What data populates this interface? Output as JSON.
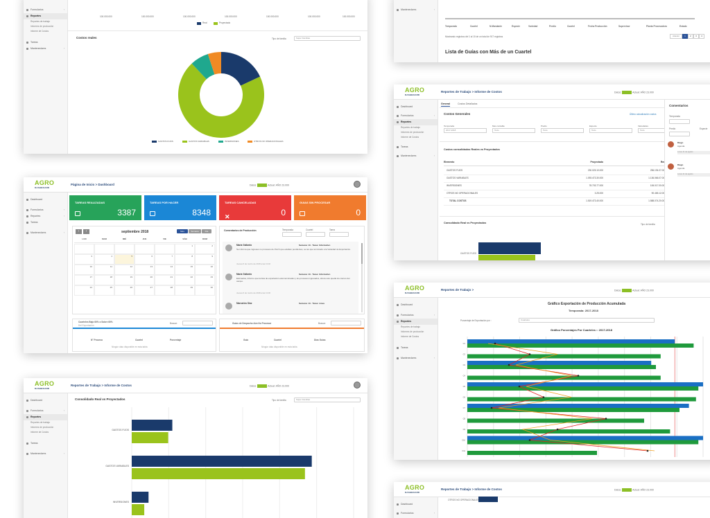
{
  "brand": {
    "l1": "AGRO",
    "l2": "DASHBOARD"
  },
  "status_label": "Datos:",
  "status_period_label": "Actual:",
  "status_update": "AÑO 23.000",
  "sidebar": {
    "dashboard": "Dashboard",
    "formularios": "Formularios",
    "reportes": "Reportes",
    "reportes_trabajo": "Reportes de trabajo",
    "informe_produccion": "Informes de producción",
    "informe_costos": "Informe de Costos",
    "tareas": "Tareas",
    "mantenedores": "Mantenedores"
  },
  "costs_card": {
    "legend_top": [
      "Real",
      "Proyectado"
    ],
    "title": "Costos reales",
    "filter_label": "Tipo de familia",
    "filter_value": "Super Familias",
    "axis_ticks": [
      "100.000.000",
      "100.000.000",
      "100.000.000",
      "100.000.000",
      "100.000.000",
      "100.000.000",
      "100.000.000"
    ],
    "legend": [
      {
        "name": "GASTOS FIJOS",
        "color": "#1a3a6b"
      },
      {
        "name": "GASTOS VARIABLES",
        "color": "#9ac31c"
      },
      {
        "name": "INVERSIONES",
        "color": "#1fa88e"
      },
      {
        "name": "OTROS NO OPERACIONALES",
        "color": "#f08a24"
      }
    ],
    "chart_data": {
      "type": "pie",
      "title": "Costos reales",
      "categories": [
        "GASTOS FIJOS",
        "GASTOS VARIABLES",
        "INVERSIONES",
        "OTROS NO OPERACIONALES"
      ],
      "values": [
        18,
        70,
        7,
        5
      ]
    }
  },
  "guides_card": {
    "cols": [
      "Temporada",
      "Cuartel",
      "N.Mandante",
      "Especie",
      "Variedad",
      "Predio",
      "Cuartel",
      "Fecha Producción",
      "Supervisor",
      "Planta Procesadora",
      "Estado"
    ],
    "footer": "Mostrando registros del 1 al 10 de un total de 917 registros",
    "pager": [
      "Anterior",
      "1",
      "2",
      "3",
      "4"
    ],
    "title": "Lista de Guías con Más de un Cuartel"
  },
  "dashboard_card": {
    "breadcrumb": "Página de Inicio > Dashboard",
    "kpis": [
      {
        "label": "TAREAS REALIZADAS",
        "value": "3387",
        "color": "#27a35a"
      },
      {
        "label": "TAREAS POR HACER",
        "value": "8348",
        "color": "#1b87d6"
      },
      {
        "label": "TAREAS CANCELADAS",
        "value": "0",
        "color": "#e83a3a"
      },
      {
        "label": "GUIAS SIN PROCESAR",
        "value": "0",
        "color": "#f07b2e"
      }
    ],
    "calendar": {
      "month": "septiembre 2018",
      "views": [
        "Mes",
        "Semana",
        "Día"
      ],
      "weekdays": [
        "LUN",
        "MAR",
        "MIÉ",
        "JUE",
        "VIE",
        "SÁB",
        "DOM"
      ],
      "days": [
        "",
        "",
        "",
        "",
        "",
        "1",
        "2",
        "3",
        "4",
        "5",
        "6",
        "7",
        "8",
        "9",
        "10",
        "11",
        "12",
        "13",
        "14",
        "15",
        "16",
        "17",
        "18",
        "19",
        "20",
        "21",
        "22",
        "23",
        "24",
        "25",
        "26",
        "27",
        "28",
        "29",
        "30"
      ]
    },
    "comments": {
      "title": "Comentarios de Producción",
      "filters": [
        "Temporada",
        "Cuartel",
        "Tarea"
      ],
      "items": [
        {
          "name": "María Gallardo",
          "task": "Semana: 13 · Tarea: Informativo",
          "text": "Se informa que ingreses no procesos de Porch que estaban pendientes, se les que terminado a la Variedad de Exportación.",
          "date": "Jueves 6 de marzo de 2018 a las 13:32"
        },
        {
          "name": "María Gallardo",
          "task": "Semana: 13 · Tarea: Informativo",
          "text": "Estimados, Informo que la lista de exportación está terminados y los procesos ingresados, ahora solo queda los cierres del campo.",
          "date": "Jueves 6 de marzo de 2018 a las 13:30"
        },
        {
          "name": "Marcarios Díaz",
          "task": "Semana: 13 · Tarea: Línea",
          "text": "",
          "date": ""
        }
      ]
    },
    "list_left": {
      "title": "Cuarteles Bajo 60% o Sobre 60%",
      "subtitle": "Del Exportación",
      "search": "Buscar:",
      "cols": [
        "N° Proceso",
        "Cuartel",
        "Porcentaje"
      ],
      "empty": "Ningún dato disponible en esta tabla"
    },
    "list_right": {
      "title": "Guías de Despacho Aún No Procesar",
      "search": "Buscar:",
      "cols": [
        "Guía",
        "Cuartel",
        "Días Guías"
      ],
      "empty": "Ningún dato disponible en esta tabla"
    }
  },
  "general_costs_card": {
    "breadcrumb": "Reportes de Trabajo > Informe de Costos",
    "tabs": [
      "General",
      "Costos Detallados"
    ],
    "title": "Costos Generales",
    "link": "Último actualización costos",
    "filters": [
      {
        "label": "Temporada",
        "value": "2017-2018"
      },
      {
        "label": "Mes contable",
        "value": "Todo"
      },
      {
        "label": "Predio",
        "value": "Todo"
      },
      {
        "label": "Especie",
        "value": "Todo"
      },
      {
        "label": "Variedades",
        "value": "Todo"
      }
    ],
    "table_title": "Costos consolidados Reales vs Proyectados",
    "cols": [
      "Elemento",
      "Proyectado",
      "Real"
    ],
    "rows": [
      {
        "name": "GASTOS FIJOS",
        "proj": "230.025.10.000",
        "real": "256.194.07.000"
      },
      {
        "name": "GASTOS VARIABLES",
        "proj": "1.093.473.30.000",
        "real": "1.136.066.07.000"
      },
      {
        "name": "INVERSIONES",
        "proj": "78.703.77.000",
        "real": "106.017.00.000"
      },
      {
        "name": "OTROS NO OPERACIONALES",
        "proj": "3.25.000",
        "real": "90.465.12.000"
      },
      {
        "name": "TOTAL COSTOS",
        "proj": "1.519.473.40.000",
        "real": "1.588.074.20.000"
      }
    ],
    "consol_title": "Consolidado Real vs Proyectados",
    "consol_filter": "Tipo de familia",
    "bar_label": "GASTOS FIJOS",
    "right_title": "Comentarios",
    "right_filters": [
      "Temporada",
      "Predio",
      "Especie"
    ],
    "right_items": [
      {
        "name": "Diego",
        "text": "Agenda",
        "date": "Lunes 11 de agosto"
      },
      {
        "name": "Diego",
        "text": "Agenda",
        "date": "Lunes 11 de agosto"
      }
    ]
  },
  "consol_card": {
    "breadcrumb": "Reportes de Trabajo > Informe de Costos",
    "title": "Consolidado Real vs Proyectados",
    "filter_label": "Tipo de familia",
    "filter_value": "Super Familias",
    "chart_data": {
      "type": "bar",
      "title": "Consolidado Real vs Proyectados",
      "categories": [
        "GASTOS FIJOS",
        "GASTOS VARIABLES",
        "INVERSIONES"
      ],
      "series": [
        {
          "name": "Real",
          "values": [
            256,
            1136,
            106
          ]
        },
        {
          "name": "Proyectado",
          "values": [
            230,
            1093,
            79
          ]
        }
      ],
      "xlim": [
        0,
        1400
      ]
    }
  },
  "export_card": {
    "breadcrumb": "Reportes de Trabajo >",
    "chart_title": "Gráfico Exportación de Producción Acumulada",
    "chart_subtitle": "Temporada: 2017-2018",
    "filter_label": "Porcentaje de Exportación por :",
    "filter_value": "Cuarteles",
    "inner_title": "Gráfico Porcentajes Por Cuarteles :: 2017-2018",
    "chart_data": {
      "type": "bar",
      "categories": [
        "C1",
        "C2",
        "C3",
        "C4",
        "C5",
        "C6",
        "C7",
        "C8",
        "C9",
        "C10",
        "C11"
      ],
      "series": [
        {
          "name": "Proyectado",
          "color": "#1a6fc4",
          "values": [
            88,
            0,
            78,
            0,
            100,
            0,
            94,
            0,
            0,
            100,
            0
          ]
        },
        {
          "name": "Real",
          "color": "#1f9a3c",
          "values": [
            96,
            0,
            80,
            0,
            98,
            0,
            90,
            0,
            0,
            98,
            0
          ]
        }
      ]
    }
  },
  "bottom_card": {
    "breadcrumb": "Reportes de Trabajo > Informe de Costos",
    "bar_label": "OTROS NO OPERACIONALES"
  }
}
